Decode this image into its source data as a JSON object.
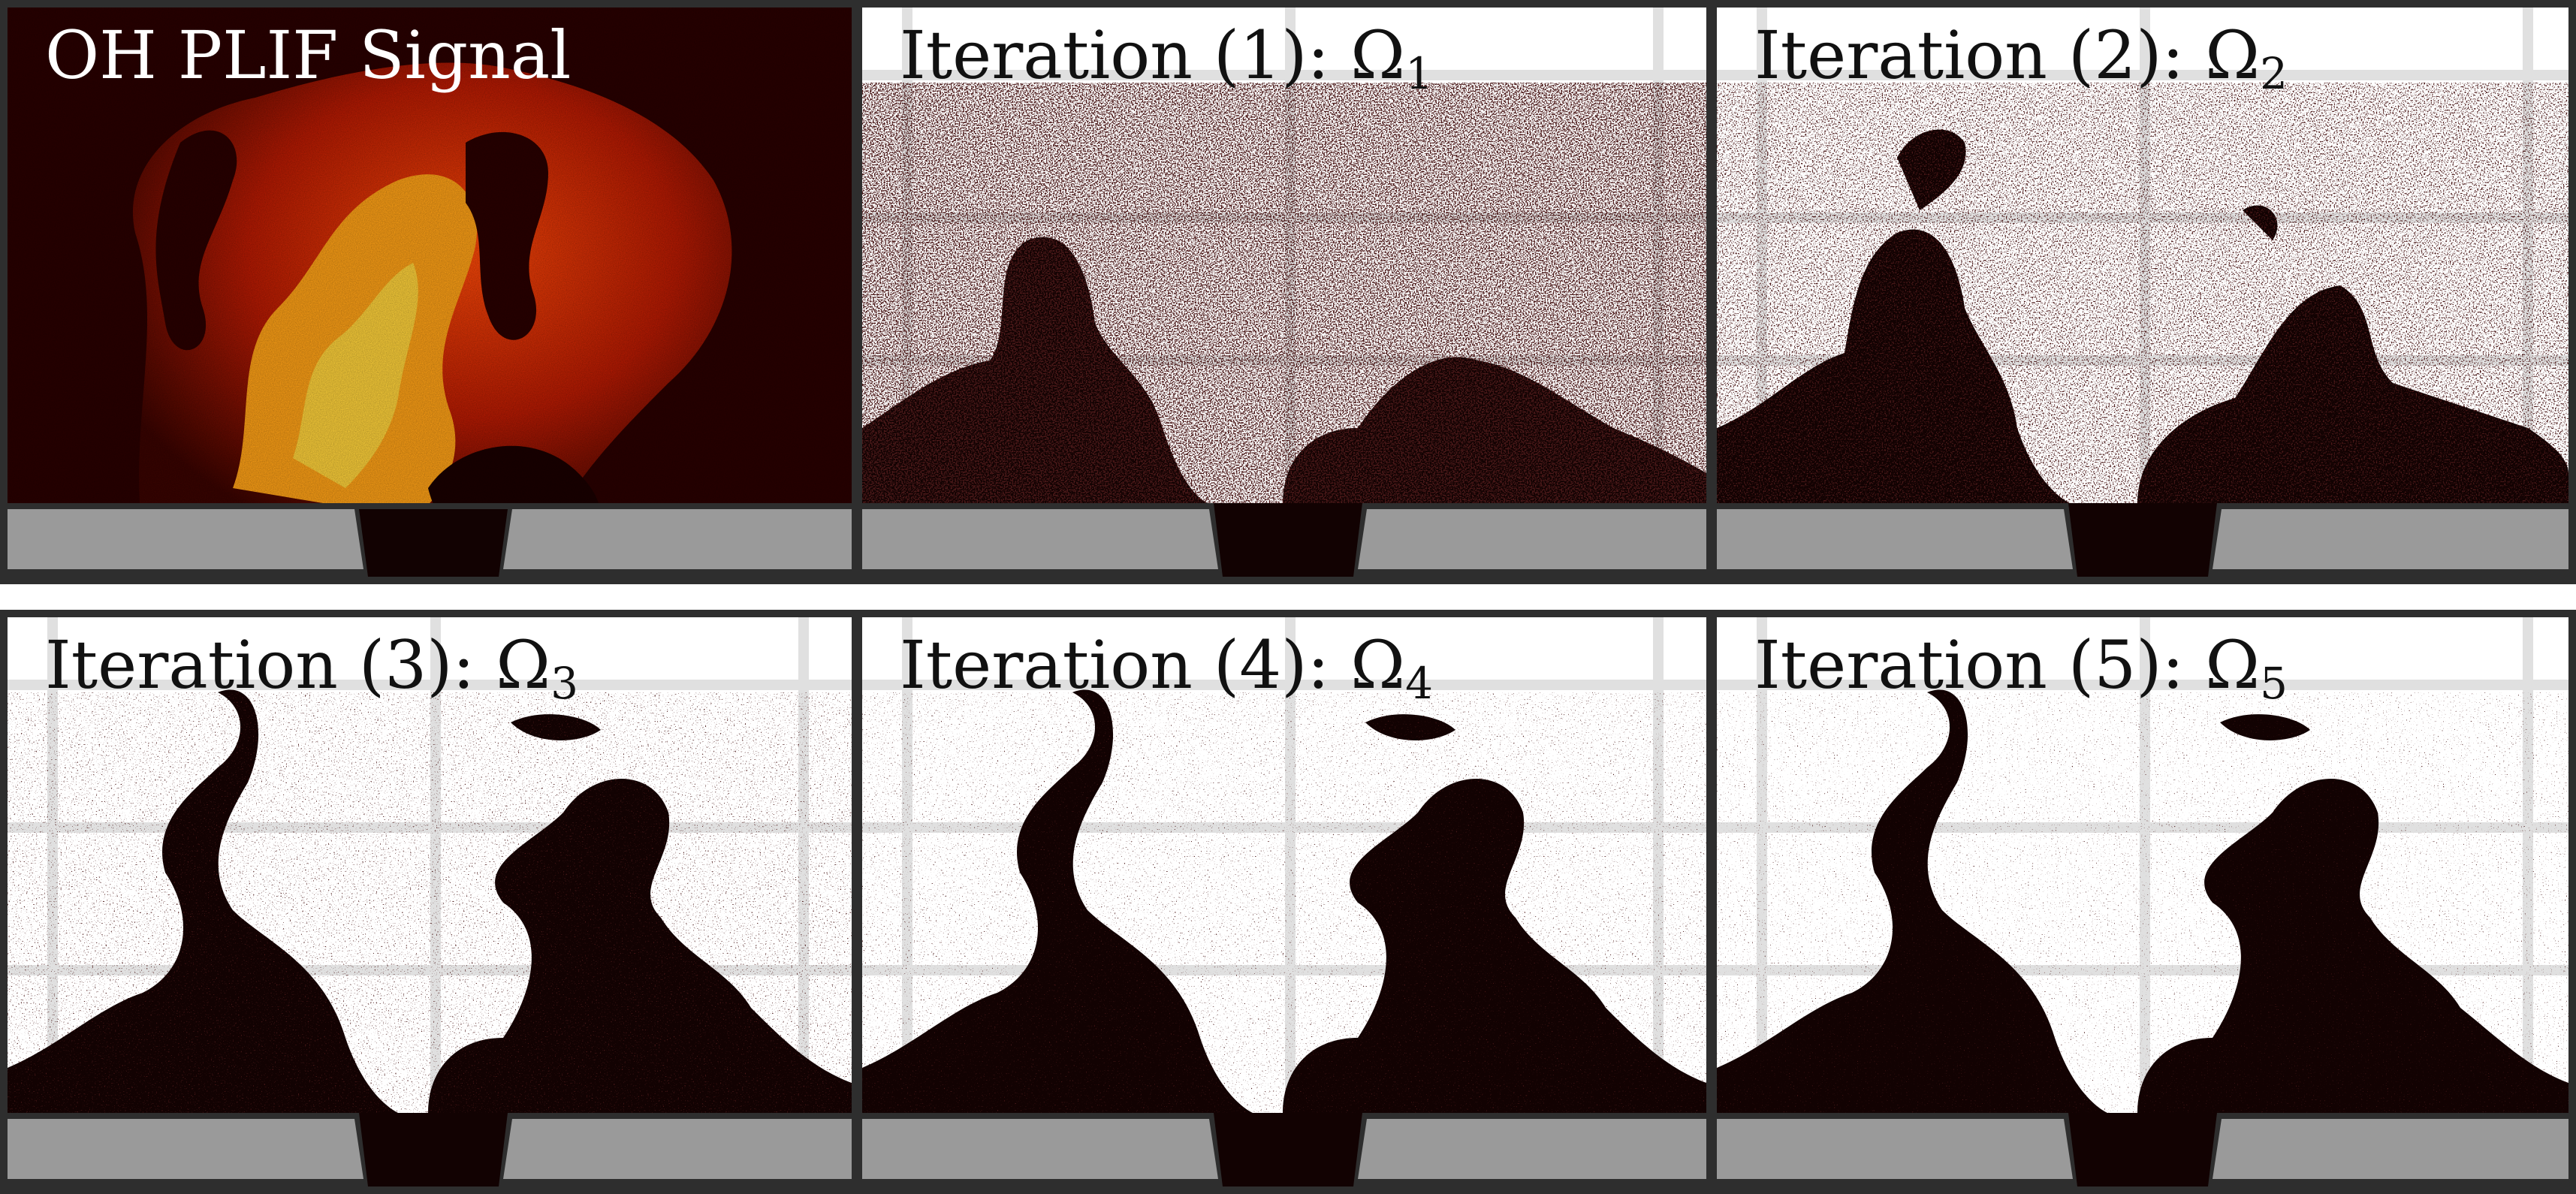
{
  "figure": {
    "panels": [
      {
        "id": "oh-plif",
        "title": "OH PLIF Signal",
        "subscript": "",
        "kind": "signal"
      },
      {
        "id": "iter-1",
        "title": "Iteration (1): Ω",
        "subscript": "1",
        "kind": "mask"
      },
      {
        "id": "iter-2",
        "title": "Iteration (2): Ω",
        "subscript": "2",
        "kind": "mask"
      },
      {
        "id": "iter-3",
        "title": "Iteration (3): Ω",
        "subscript": "3",
        "kind": "mask"
      },
      {
        "id": "iter-4",
        "title": "Iteration (4): Ω",
        "subscript": "4",
        "kind": "mask"
      },
      {
        "id": "iter-5",
        "title": "Iteration (5): Ω",
        "subscript": "5",
        "kind": "mask"
      }
    ],
    "colors": {
      "frame": "#2e2e2e",
      "flame_region": "#120202",
      "burner": "#9a9a9a",
      "signal_low": "#2a0000",
      "signal_mid": "#e03a06",
      "signal_high": "#ffd23a",
      "grid": "#d9d9d9"
    }
  }
}
